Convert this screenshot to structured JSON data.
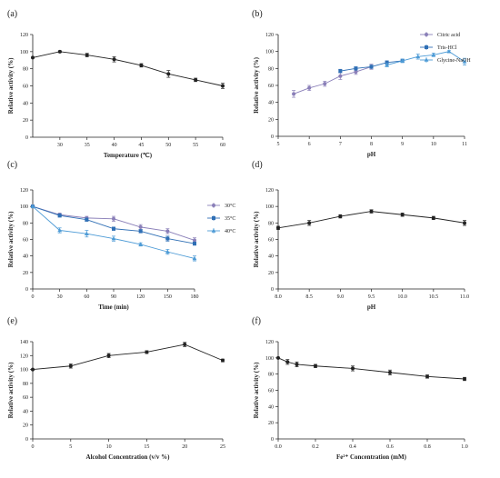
{
  "figure": {
    "ylabel": "Relative activity (%)"
  },
  "chart_data": [
    {
      "id": "a",
      "panel_label": "(a)",
      "type": "line",
      "xlabel": "Temperature (℃)",
      "ylabel": "Relative activity (%)",
      "xlim": [
        25,
        60
      ],
      "ylim": [
        0,
        120
      ],
      "xticks": [
        30,
        35,
        40,
        45,
        50,
        55,
        60
      ],
      "xtick_labels": [
        "30",
        "35",
        "40",
        "45",
        "50",
        "55",
        "60"
      ],
      "yticks": [
        0,
        20,
        40,
        60,
        80,
        100,
        120
      ],
      "legend": [],
      "series": [
        {
          "color": "#222222",
          "marker": "circle",
          "x": [
            25,
            30,
            35,
            40,
            45,
            50,
            55,
            60
          ],
          "y": [
            93,
            100,
            96,
            91,
            84,
            74,
            67,
            60
          ],
          "err": [
            0,
            1,
            2,
            3,
            2,
            4,
            2,
            3
          ]
        }
      ]
    },
    {
      "id": "b",
      "panel_label": "(b)",
      "type": "line",
      "xlabel": "pH",
      "ylabel": "Relative activity (%)",
      "xlim": [
        5,
        11
      ],
      "ylim": [
        0,
        120
      ],
      "xticks": [
        5,
        6,
        7,
        8,
        9,
        10,
        11
      ],
      "xtick_labels": [
        "5",
        "6",
        "7",
        "8",
        "9",
        "10",
        "11"
      ],
      "yticks": [
        0,
        20,
        40,
        60,
        80,
        100,
        120
      ],
      "legend": [
        "Citric acid",
        "Tris-HCl",
        "Glycine-NaOH"
      ],
      "series": [
        {
          "name": "Citric acid",
          "color": "#8a7fb8",
          "marker": "circle",
          "x": [
            5.5,
            6,
            6.5,
            7,
            7.5,
            8
          ],
          "y": [
            50,
            57,
            62,
            71,
            76,
            82
          ],
          "err": [
            4,
            3,
            3,
            4,
            3,
            3
          ]
        },
        {
          "name": "Tris-HCl",
          "color": "#2f6fb5",
          "marker": "square",
          "x": [
            7,
            7.5,
            8,
            8.5,
            9
          ],
          "y": [
            77,
            80,
            82,
            87,
            89
          ],
          "err": [
            2,
            2,
            2,
            2,
            2
          ]
        },
        {
          "name": "Glycine-NaOH",
          "color": "#4d9bd6",
          "marker": "triangle",
          "x": [
            8.5,
            9,
            9.5,
            10,
            10.5,
            11
          ],
          "y": [
            84,
            89,
            94,
            96,
            100,
            88
          ],
          "err": [
            2,
            2,
            3,
            2,
            1,
            4
          ]
        }
      ]
    },
    {
      "id": "c",
      "panel_label": "(c)",
      "type": "line",
      "xlabel": "Time (min)",
      "ylabel": "Relative activity (%)",
      "xlim": [
        0,
        180
      ],
      "ylim": [
        0,
        120
      ],
      "xticks": [
        0,
        30,
        60,
        90,
        120,
        150,
        180
      ],
      "xtick_labels": [
        "0",
        "30",
        "60",
        "90",
        "120",
        "150",
        "180"
      ],
      "yticks": [
        0,
        20,
        40,
        60,
        80,
        100,
        120
      ],
      "legend": [
        "30°C",
        "35°C",
        "40°C"
      ],
      "series": [
        {
          "name": "30°C",
          "color": "#8a7fb8",
          "marker": "circle",
          "x": [
            0,
            30,
            60,
            90,
            120,
            150,
            180
          ],
          "y": [
            100,
            90,
            86,
            85,
            75,
            70,
            59
          ],
          "err": [
            0,
            2,
            2,
            3,
            3,
            3,
            3
          ]
        },
        {
          "name": "35°C",
          "color": "#2f6fb5",
          "marker": "square",
          "x": [
            0,
            30,
            60,
            90,
            120,
            150,
            180
          ],
          "y": [
            100,
            89,
            84,
            73,
            70,
            61,
            55
          ],
          "err": [
            0,
            2,
            2,
            2,
            2,
            3,
            2
          ]
        },
        {
          "name": "40°C",
          "color": "#4d9bd6",
          "marker": "triangle",
          "x": [
            0,
            30,
            60,
            90,
            120,
            150,
            180
          ],
          "y": [
            100,
            71,
            67,
            61,
            54,
            45,
            37
          ],
          "err": [
            0,
            3,
            4,
            3,
            2,
            3,
            3
          ]
        }
      ]
    },
    {
      "id": "d",
      "panel_label": "(d)",
      "type": "line",
      "xlabel": "pH",
      "ylabel": "Relative activity (%)",
      "xlim": [
        8,
        11
      ],
      "ylim": [
        0,
        120
      ],
      "xticks": [
        8,
        8.5,
        9,
        9.5,
        10,
        10.5,
        11
      ],
      "xtick_labels": [
        "8.0",
        "8.5",
        "9.0",
        "9.5",
        "10.0",
        "10.5",
        "11.0"
      ],
      "yticks": [
        0,
        20,
        40,
        60,
        80,
        100,
        120
      ],
      "legend": [],
      "series": [
        {
          "color": "#222222",
          "marker": "circle",
          "x": [
            8,
            8.5,
            9,
            9.5,
            10,
            10.5,
            11
          ],
          "y": [
            74,
            80,
            88,
            94,
            90,
            86,
            80
          ],
          "err": [
            2,
            3,
            2,
            2,
            2,
            2,
            3
          ]
        }
      ]
    },
    {
      "id": "e",
      "panel_label": "(e)",
      "type": "line",
      "xlabel": "Alcohol Concentration (v/v %)",
      "ylabel": "Relative activity (%)",
      "xlim": [
        0,
        25
      ],
      "ylim": [
        0,
        140
      ],
      "xticks": [
        0,
        5,
        10,
        15,
        20,
        25
      ],
      "xtick_labels": [
        "0",
        "5",
        "10",
        "15",
        "20",
        "25"
      ],
      "yticks": [
        0,
        20,
        40,
        60,
        80,
        100,
        120,
        140
      ],
      "legend": [],
      "series": [
        {
          "color": "#222222",
          "marker": "circle",
          "x": [
            0,
            5,
            10,
            15,
            20,
            25
          ],
          "y": [
            100,
            105,
            120,
            125,
            136,
            113
          ],
          "err": [
            0,
            3,
            3,
            2,
            3,
            2
          ]
        }
      ]
    },
    {
      "id": "f",
      "panel_label": "(f)",
      "type": "line",
      "xlabel": "Fe²⁺ Concentration (mM)",
      "ylabel": "Relative activity (%)",
      "xlim": [
        0,
        1
      ],
      "ylim": [
        0,
        120
      ],
      "xticks": [
        0,
        0.2,
        0.4,
        0.6,
        0.8,
        1.0
      ],
      "xtick_labels": [
        "0.0",
        "0.2",
        "0.4",
        "0.6",
        "0.8",
        "1.0"
      ],
      "yticks": [
        0,
        20,
        40,
        60,
        80,
        100,
        120
      ],
      "legend": [],
      "series": [
        {
          "color": "#222222",
          "marker": "circle",
          "x": [
            0,
            0.05,
            0.1,
            0.2,
            0.4,
            0.6,
            0.8,
            1.0
          ],
          "y": [
            100,
            95,
            92,
            90,
            87,
            82,
            77,
            74
          ],
          "err": [
            0,
            3,
            3,
            2,
            3,
            3,
            2,
            2
          ]
        }
      ]
    }
  ]
}
